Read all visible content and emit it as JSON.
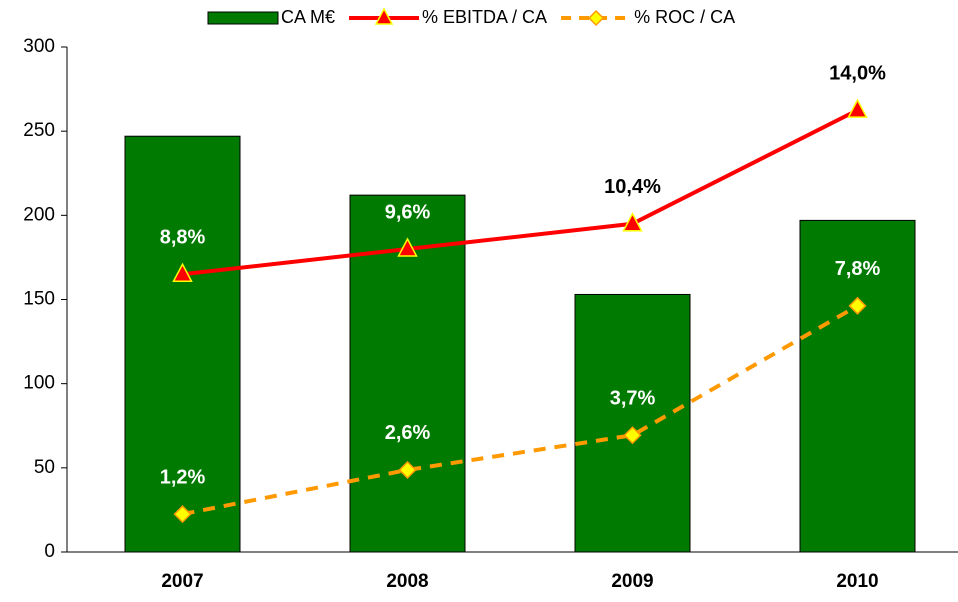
{
  "chart_data": {
    "type": "bar",
    "categories": [
      "2007",
      "2008",
      "2009",
      "2010"
    ],
    "series": [
      {
        "name": "CA M€",
        "type": "bar",
        "color": "#007a00",
        "values": [
          247,
          212,
          153,
          197
        ]
      },
      {
        "name": "% EBITDA / CA",
        "type": "line",
        "axis": "y2",
        "color": "#ff0000",
        "marker": "triangle",
        "marker_color": "#ffff00",
        "dashed": false,
        "values": [
          8.8,
          9.6,
          10.4,
          14.0
        ],
        "value_labels": [
          "8,8%",
          "9,6%",
          "10,4%",
          "14,0%"
        ]
      },
      {
        "name": "% ROC / CA",
        "type": "line",
        "axis": "y2",
        "color": "#ff9900",
        "marker": "diamond",
        "marker_color": "#ffff00",
        "dashed": true,
        "values": [
          1.2,
          2.6,
          3.7,
          7.8
        ],
        "value_labels": [
          "1,2%",
          "2,6%",
          "3,7%",
          "7,8%"
        ]
      }
    ],
    "ylim": [
      0,
      300
    ],
    "yticks": [
      0,
      50,
      100,
      150,
      200,
      250,
      300
    ],
    "y2lim": [
      0,
      16
    ],
    "grid": false,
    "legend": "top"
  }
}
